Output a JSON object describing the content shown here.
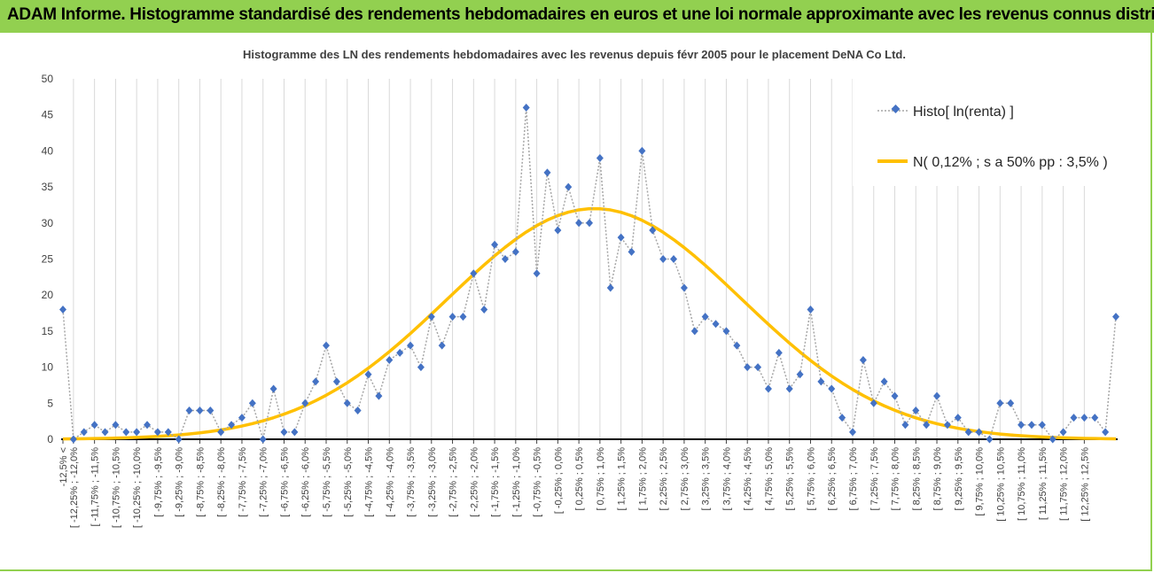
{
  "header": {
    "title": "ADAM Informe. Histogramme standardisé des rendements hebdomadaires en euros et une loi normale approximante avec les revenus connus distribués"
  },
  "chart_data": {
    "type": "line",
    "title": "Histogramme des LN des rendements hebdomadaires avec les revenus depuis févr 2005 pour le placement DeNA Co Ltd.",
    "xlabel": "",
    "ylabel": "",
    "ylim": [
      0,
      50
    ],
    "yticks": [
      0,
      5,
      10,
      15,
      20,
      25,
      30,
      35,
      40,
      45,
      50
    ],
    "grid": "vertical",
    "legend_position": "top-right",
    "colors": {
      "histo": "#4472c4",
      "normal": "#ffc000"
    },
    "categories": [
      "-12,5% <",
      "[ -12,25% ; -12,0%",
      "[ -11,75% ; -11,5%",
      "[ -10,75% ; -10,5%",
      "[ -10,25% ; -10,0%",
      "[ -9,75% ; -9,5%",
      "[ -9,25% ; -9,0%",
      "[ -8,75% ; -8,5%",
      "[ -8,25% ; -8,0%",
      "[ -7,75% ; -7,5%",
      "[ -7,25% ; -7,0%",
      "[ -6,75% ; -6,5%",
      "[ -6,25% ; -6,0%",
      "[ -5,75% ; -5,5%",
      "[ -5,25% ; -5,0%",
      "[ -4,75% ; -4,5%",
      "[ -4,25% ; -4,0%",
      "[ -3,75% ; -3,5%",
      "[ -3,25% ; -3,0%",
      "[ -2,75% ; -2,5%",
      "[ -2,25% ; -2,0%",
      "[ -1,75% ; -1,5%",
      "[ -1,25% ; -1,0%",
      "[ -0,75% ; -0,5%",
      "[ -0,25% ; 0,0%",
      "[ 0,25% ; 0,5%",
      "[ 0,75% ; 1,0%",
      "[ 1,25% ; 1,5%",
      "[ 1,75% ; 2,0%",
      "[ 2,25% ; 2,5%",
      "[ 2,75% ; 3,0%",
      "[ 3,25% ; 3,5%",
      "[ 3,75% ; 4,0%",
      "[ 4,25% ; 4,5%",
      "[ 4,75% ; 5,0%",
      "[ 5,25% ; 5,5%",
      "[ 5,75% ; 6,0%",
      "[ 6,25% ; 6,5%",
      "[ 6,75% ; 7,0%",
      "[ 7,25% ; 7,5%",
      "[ 7,75% ; 8,0%",
      "[ 8,25% ; 8,5%",
      "[ 8,75% ; 9,0%",
      "[ 9,25% ; 9,5%",
      "[ 9,75% ; 10,0%",
      "[ 10,25% ; 10,5%",
      "[ 10,75% ; 11,0%",
      "[ 11,25% ; 11,5%",
      "[ 11,75% ; 12,0%",
      "[ 12,25% ; 12,5%"
    ],
    "bins": [
      -12.5,
      -12.25,
      -12.0,
      -11.75,
      -11.5,
      -11.25,
      -11.0,
      -10.75,
      -10.5,
      -10.25,
      -10.0,
      -9.75,
      -9.5,
      -9.25,
      -9.0,
      -8.75,
      -8.5,
      -8.25,
      -8.0,
      -7.75,
      -7.5,
      -7.25,
      -7.0,
      -6.75,
      -6.5,
      -6.25,
      -6.0,
      -5.75,
      -5.5,
      -5.25,
      -5.0,
      -4.75,
      -4.5,
      -4.25,
      -4.0,
      -3.75,
      -3.5,
      -3.25,
      -3.0,
      -2.75,
      -2.5,
      -2.25,
      -2.0,
      -1.75,
      -1.5,
      -1.25,
      -1.0,
      -0.75,
      -0.5,
      -0.25,
      0.0,
      0.25,
      0.5,
      0.75,
      1.0,
      1.25,
      1.5,
      1.75,
      2.0,
      2.25,
      2.5,
      2.75,
      3.0,
      3.25,
      3.5,
      3.75,
      4.0,
      4.25,
      4.5,
      4.75,
      5.0,
      5.25,
      5.5,
      5.75,
      6.0,
      6.25,
      6.5,
      6.75,
      7.0,
      7.25,
      7.5,
      7.75,
      8.0,
      8.25,
      8.5,
      8.75,
      9.0,
      9.25,
      9.5,
      9.75,
      10.0,
      10.25,
      10.5,
      10.75,
      11.0,
      11.25,
      11.5,
      11.75,
      12.0,
      12.25,
      12.5
    ],
    "series": [
      {
        "name": "Histo[ ln(renta) ]",
        "values": [
          18,
          0,
          1,
          2,
          1,
          2,
          1,
          1,
          2,
          1,
          1,
          0,
          4,
          4,
          4,
          1,
          2,
          3,
          5,
          0,
          7,
          1,
          1,
          5,
          8,
          13,
          8,
          5,
          4,
          9,
          6,
          11,
          12,
          13,
          10,
          17,
          13,
          17,
          17,
          23,
          18,
          27,
          25,
          26,
          46,
          23,
          37,
          29,
          35,
          30,
          30,
          39,
          21,
          28,
          26,
          40,
          29,
          25,
          25,
          21,
          15,
          17,
          16,
          15,
          13,
          10,
          10,
          7,
          12,
          7,
          9,
          18,
          8,
          7,
          3,
          1,
          11,
          5,
          8,
          6,
          2,
          4,
          2,
          6,
          2,
          3,
          1,
          1,
          0,
          5,
          5,
          2,
          2,
          2,
          0,
          1,
          3,
          3,
          3,
          1,
          17
        ]
      },
      {
        "name": "N( 0,12% ; s a 50% pp : 3,5% )",
        "mean": 0.12,
        "sd": 3.5,
        "peak": 32
      }
    ]
  }
}
